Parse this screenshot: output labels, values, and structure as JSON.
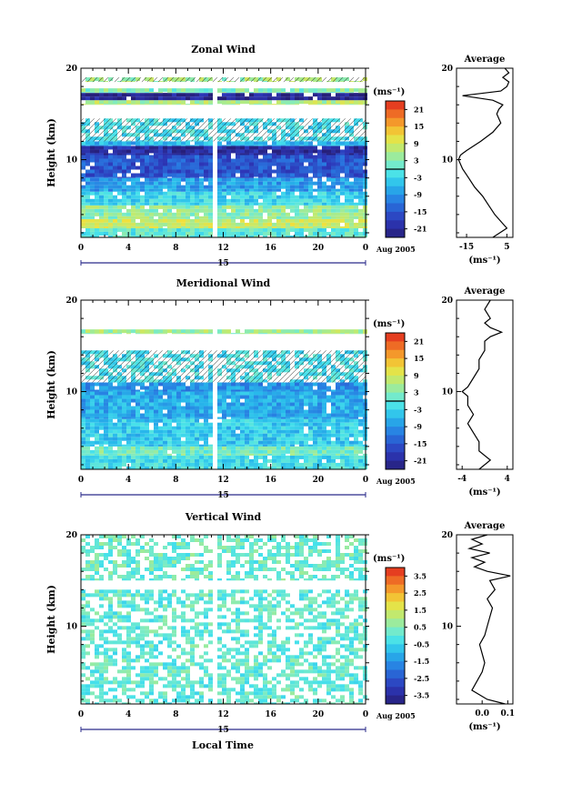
{
  "figure": {
    "date_label": "Aug 2005",
    "day_label": "15",
    "xlabel_bottom": "Local Time"
  },
  "chart_data": [
    {
      "type": "heatmap",
      "title": "Zonal Wind",
      "ylabel": "Height (km)",
      "xlabel": "",
      "x_ticks": [
        "0",
        "4",
        "8",
        "12",
        "16",
        "20",
        "0"
      ],
      "xlim": [
        0,
        24
      ],
      "y_ticks": [
        "10",
        "20"
      ],
      "ylim": [
        1.5,
        20
      ],
      "unit_label": "(ms⁻¹)",
      "colorbar": {
        "min": -24,
        "max": 24,
        "tick_labels": [
          "21",
          "15",
          "9",
          "3",
          "-3",
          "-9",
          "-15",
          "-21"
        ],
        "tick_values": [
          21,
          15,
          9,
          3,
          -3,
          -9,
          -15,
          -21
        ],
        "zero_line": true
      },
      "gap_hours": [
        10.8,
        11.3
      ],
      "layers": [
        {
          "y": [
            1.5,
            2.5
          ],
          "value": 0
        },
        {
          "y": [
            2.5,
            3.5
          ],
          "value": 8
        },
        {
          "y": [
            3.5,
            5.0
          ],
          "value": 4
        },
        {
          "y": [
            5.0,
            6.5
          ],
          "value": -3
        },
        {
          "y": [
            6.5,
            8.0
          ],
          "value": -8
        },
        {
          "y": [
            8.0,
            10.5
          ],
          "value": -15
        },
        {
          "y": [
            10.5,
            11.5
          ],
          "value": -20
        },
        {
          "y": [
            11.5,
            12.0
          ],
          "value": -6
        },
        {
          "y": [
            12.0,
            14.5
          ],
          "value": -2,
          "sparse": true
        },
        {
          "y": [
            16.0,
            16.5
          ],
          "value": 6
        },
        {
          "y": [
            16.5,
            17.3
          ],
          "value": -22
        },
        {
          "y": [
            17.3,
            17.8
          ],
          "value": 3
        },
        {
          "y": [
            18.5,
            19.0
          ],
          "value": 5,
          "sparse": true
        }
      ],
      "average": {
        "title": "Average",
        "xlabel": "(ms⁻¹)",
        "x_ticks": [
          "-15",
          "5"
        ],
        "x_tick_values": [
          -15,
          5
        ],
        "xlim": [
          -20,
          8
        ],
        "heights": [
          1.5,
          2.5,
          3.0,
          4.0,
          5.0,
          6.0,
          7.0,
          8.0,
          9.0,
          10.0,
          10.5,
          11.0,
          12.0,
          13.0,
          14.0,
          15.0,
          15.5,
          16.0,
          16.5,
          17.0,
          17.5,
          18.0,
          18.5,
          19.0,
          19.5,
          20.0
        ],
        "values": [
          -2,
          5,
          3,
          -1,
          -4,
          -7,
          -11,
          -14,
          -17,
          -19,
          -18,
          -15,
          -8,
          -2,
          2,
          0,
          1,
          3,
          -2,
          -17,
          2,
          5,
          6,
          3,
          6,
          4
        ]
      }
    },
    {
      "type": "heatmap",
      "title": "Meridional Wind",
      "ylabel": "Height (km)",
      "xlabel": "",
      "x_ticks": [
        "0",
        "4",
        "8",
        "12",
        "16",
        "20",
        "0"
      ],
      "xlim": [
        0,
        24
      ],
      "y_ticks": [
        "10",
        "20"
      ],
      "ylim": [
        1.5,
        20
      ],
      "unit_label": "(ms⁻¹)",
      "colorbar": {
        "min": -24,
        "max": 24,
        "tick_labels": [
          "21",
          "15",
          "9",
          "3",
          "-3",
          "-9",
          "-15",
          "-21"
        ],
        "tick_values": [
          21,
          15,
          9,
          3,
          -3,
          -9,
          -15,
          -21
        ],
        "zero_line": true
      },
      "gap_hours": [
        10.8,
        11.3
      ],
      "layers": [
        {
          "y": [
            1.5,
            3.0
          ],
          "value": -2
        },
        {
          "y": [
            3.0,
            4.0
          ],
          "value": 2
        },
        {
          "y": [
            4.0,
            7.0
          ],
          "value": -4
        },
        {
          "y": [
            7.0,
            10.0
          ],
          "value": -7
        },
        {
          "y": [
            10.0,
            11.0
          ],
          "value": -9
        },
        {
          "y": [
            11.0,
            14.5
          ],
          "value": -2,
          "sparse": true
        },
        {
          "y": [
            16.3,
            16.8
          ],
          "value": 5
        }
      ],
      "average": {
        "title": "Average",
        "xlabel": "(ms⁻¹)",
        "x_ticks": [
          "-4",
          "4"
        ],
        "x_tick_values": [
          -4,
          4
        ],
        "xlim": [
          -5,
          5
        ],
        "heights": [
          1.5,
          2.5,
          3.5,
          4.5,
          5.5,
          6.5,
          7.5,
          8.5,
          9.5,
          10.0,
          10.5,
          11.5,
          12.5,
          13.5,
          14.5,
          15.0,
          15.5,
          16.0,
          16.5,
          17.0,
          17.5,
          18.0,
          19.0,
          20.0
        ],
        "values": [
          -1,
          1,
          -1,
          -1,
          -2,
          -3,
          -2,
          -3,
          -3,
          -4,
          -3,
          -2,
          -1,
          -1,
          0,
          0,
          0,
          1,
          3,
          1,
          0,
          1,
          0,
          1
        ]
      }
    },
    {
      "type": "heatmap",
      "title": "Vertical Wind",
      "ylabel": "Height (km)",
      "xlabel": "Local Time",
      "x_ticks": [
        "0",
        "4",
        "8",
        "12",
        "16",
        "20",
        "0"
      ],
      "xlim": [
        0,
        24
      ],
      "y_ticks": [
        "10",
        "20"
      ],
      "ylim": [
        1.5,
        20
      ],
      "unit_label": "(ms⁻¹)",
      "colorbar": {
        "min": -4,
        "max": 4,
        "tick_labels": [
          "3.5",
          "2.5",
          "1.5",
          "0.5",
          "-0.5",
          "-1.5",
          "-2.5",
          "-3.5"
        ],
        "tick_values": [
          3.5,
          2.5,
          1.5,
          0.5,
          -0.5,
          -1.5,
          -2.5,
          -3.5
        ],
        "zero_line": false
      },
      "gap_hours": [
        10.8,
        11.3
      ],
      "layers": [
        {
          "y": [
            1.5,
            14.0
          ],
          "value": 0.1,
          "sparse": true
        },
        {
          "y": [
            15.0,
            20.0
          ],
          "value": 0.2,
          "sparse": true
        }
      ],
      "average": {
        "title": "Average",
        "xlabel": "(ms⁻¹)",
        "x_ticks": [
          "0.0",
          "0.1"
        ],
        "x_tick_values": [
          0.0,
          0.1
        ],
        "xlim": [
          -0.1,
          0.12
        ],
        "heights": [
          1.5,
          2.0,
          3.0,
          4.0,
          5.0,
          6.0,
          7.0,
          8.0,
          9.0,
          10.0,
          11.0,
          12.0,
          13.0,
          14.0,
          15.0,
          15.5,
          16.0,
          16.5,
          17.0,
          17.5,
          18.0,
          18.5,
          19.0,
          19.5,
          20.0
        ],
        "values": [
          0.09,
          0.02,
          -0.04,
          -0.02,
          0.0,
          0.01,
          0.0,
          -0.01,
          0.01,
          0.02,
          0.03,
          0.04,
          0.02,
          0.05,
          0.03,
          0.11,
          0.02,
          -0.03,
          0.01,
          -0.04,
          0.03,
          -0.05,
          0.0,
          -0.04,
          0.02
        ]
      }
    }
  ]
}
